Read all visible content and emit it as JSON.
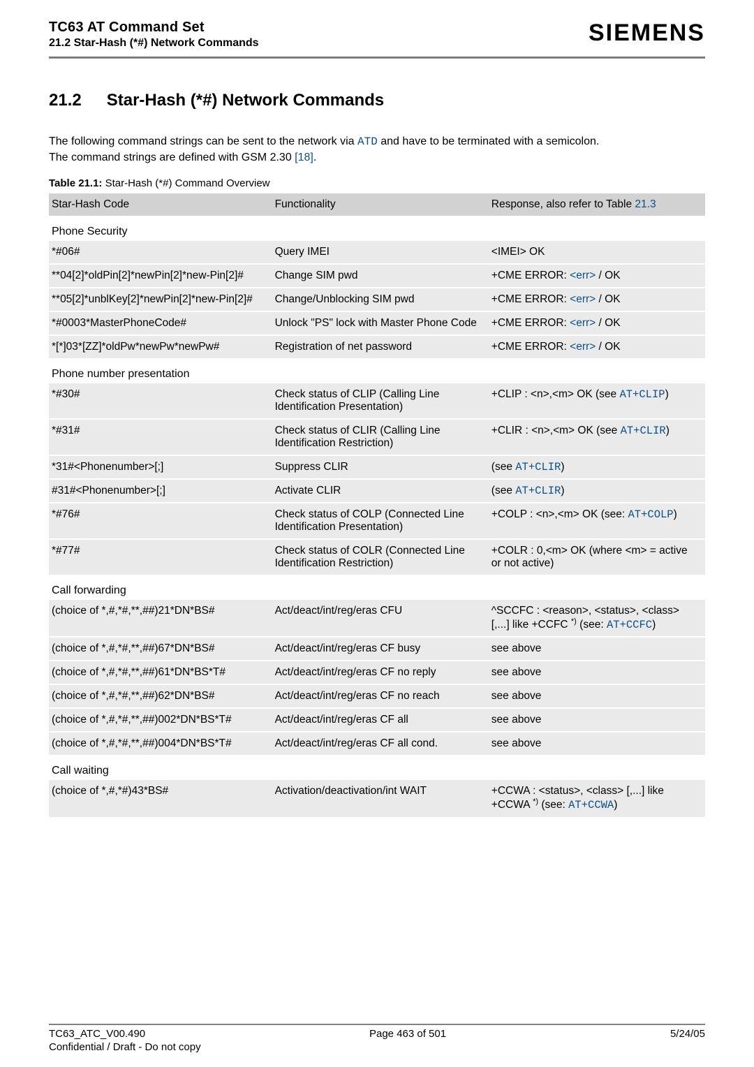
{
  "header": {
    "title": "TC63 AT Command Set",
    "subtitle": "21.2 Star-Hash (*#) Network Commands",
    "brand": "SIEMENS"
  },
  "section": {
    "number": "21.2",
    "title": "Star-Hash (*#) Network Commands"
  },
  "intro": {
    "line1_a": "The following command strings can be sent to the network via ",
    "line1_atd": "ATD",
    "line1_b": " and have to be terminated with a semicolon.",
    "line2_a": "The command strings are defined with GSM 2.30 ",
    "line2_link": "[18]",
    "line2_b": "."
  },
  "tableCaption": {
    "label": "Table 21.1:",
    "text": " Star-Hash (*#) Command Overview"
  },
  "columns": {
    "c1": "Star-Hash Code",
    "c2": "Functionality",
    "c3": "Response, also refer to Table ",
    "c3_link": "21.3"
  },
  "sections": {
    "phoneSecurity": "Phone Security",
    "phoneNumber": "Phone number presentation",
    "callForwarding": "Call forwarding",
    "callWaiting": "Call waiting"
  },
  "rows": {
    "ps1": {
      "c1": "*#06#",
      "c2": "Query IMEI",
      "c3": "<IMEI> OK"
    },
    "ps2": {
      "c1": "**04[2]*oldPin[2]*newPin[2]*new-Pin[2]#",
      "c2": "Change SIM pwd",
      "c3_a": "+CME ERROR: ",
      "c3_err": "<err>",
      "c3_b": " / OK"
    },
    "ps3": {
      "c1": "**05[2]*unblKey[2]*newPin[2]*new-Pin[2]#",
      "c2": "Change/Unblocking SIM pwd",
      "c3_a": "+CME ERROR: ",
      "c3_err": "<err>",
      "c3_b": " / OK"
    },
    "ps4": {
      "c1": "*#0003*MasterPhoneCode#",
      "c2": "Unlock \"PS\" lock with Master Phone Code",
      "c3_a": "+CME ERROR: ",
      "c3_err": "<err>",
      "c3_b": " / OK"
    },
    "ps5": {
      "c1": "*[*]03*[ZZ]*oldPw*newPw*newPw#",
      "c2": "Registration of net password",
      "c3_a": "+CME ERROR: ",
      "c3_err": "<err>",
      "c3_b": " / OK"
    },
    "pn1": {
      "c1": "*#30#",
      "c2": "Check status of CLIP (Calling Line Identification Presentation)",
      "c3_a": "+CLIP : <n>,<m> OK (see ",
      "c3_mono": "AT+CLIP",
      "c3_b": ")"
    },
    "pn2": {
      "c1": "*#31#",
      "c2": "Check status of CLIR (Calling Line Identification Restriction)",
      "c3_a": "+CLIR : <n>,<m> OK (see ",
      "c3_mono": "AT+CLIR",
      "c3_b": ")"
    },
    "pn3": {
      "c1": "*31#<Phonenumber>[;]",
      "c2": "Suppress CLIR",
      "c3_a": "(see ",
      "c3_mono": "AT+CLIR",
      "c3_b": ")"
    },
    "pn4": {
      "c1": "#31#<Phonenumber>[;]",
      "c2": "Activate CLIR",
      "c3_a": "(see ",
      "c3_mono": "AT+CLIR",
      "c3_b": ")"
    },
    "pn5": {
      "c1": "*#76#",
      "c2": "Check status of COLP (Connected Line Identification Presentation)",
      "c3_a": "+COLP : <n>,<m> OK (see: ",
      "c3_mono": "AT+COLP",
      "c3_b": ")"
    },
    "pn6": {
      "c1": "*#77#",
      "c2": "Check status of COLR (Connected Line Identification Restriction)",
      "c3": "+COLR : 0,<m> OK (where <m> = active or not active)"
    },
    "cf1": {
      "c1": "(choice of *,#,*#,**,##)21*DN*BS#",
      "c2": "Act/deact/int/reg/eras CFU",
      "c3_a": "^SCCFC : <reason>, <status>, <class> [,...] like +CCFC ",
      "c3_sup": "*)",
      "c3_b": " (see: ",
      "c3_mono": "AT+CCFC",
      "c3_c": ")"
    },
    "cf2": {
      "c1": "(choice of *,#,*#,**,##)67*DN*BS#",
      "c2": "Act/deact/int/reg/eras CF busy",
      "c3": "see above"
    },
    "cf3": {
      "c1": "(choice of *,#,*#,**,##)61*DN*BS*T#",
      "c2": "Act/deact/int/reg/eras CF no reply",
      "c3": "see above"
    },
    "cf4": {
      "c1": "(choice of *,#,*#,**,##)62*DN*BS#",
      "c2": "Act/deact/int/reg/eras CF no reach",
      "c3": "see above"
    },
    "cf5": {
      "c1": "(choice of *,#,*#,**,##)002*DN*BS*T#",
      "c2": "Act/deact/int/reg/eras CF all",
      "c3": "see above"
    },
    "cf6": {
      "c1": "(choice of *,#,*#,**,##)004*DN*BS*T#",
      "c2": "Act/deact/int/reg/eras CF all cond.",
      "c3": "see above"
    },
    "cw1": {
      "c1": "(choice of *,#,*#)43*BS#",
      "c2": "Activation/deactivation/int WAIT",
      "c3_a": "+CCWA : <status>, <class> [,...] like +CCWA ",
      "c3_sup": "*)",
      "c3_b": " (see: ",
      "c3_mono": "AT+CCWA",
      "c3_c": ")"
    }
  },
  "footer": {
    "left": "TC63_ATC_V00.490",
    "center": "Page 463 of 501",
    "right": "5/24/05",
    "line2": "Confidential / Draft - Do not copy"
  }
}
